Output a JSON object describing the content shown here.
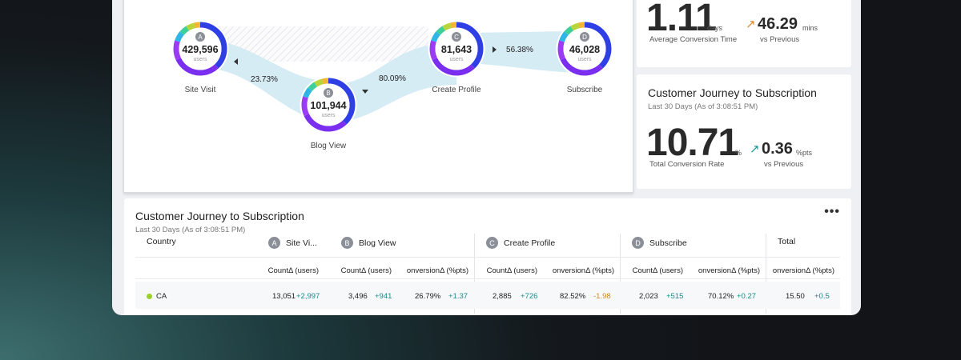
{
  "funnel": {
    "nodes": [
      {
        "letter": "A",
        "value": "429,596",
        "unit": "users",
        "label": "Site Visit"
      },
      {
        "letter": "B",
        "value": "101,944",
        "unit": "users",
        "label": "Blog View"
      },
      {
        "letter": "C",
        "value": "81,643",
        "unit": "users",
        "label": "Create Profile"
      },
      {
        "letter": "D",
        "value": "46,028",
        "unit": "users",
        "label": "Subscribe"
      }
    ],
    "rates": [
      "23.73%",
      "80.09%",
      "56.38%"
    ]
  },
  "stat_time": {
    "value": "1.11",
    "unit": "days",
    "label": "Average Conversion Time",
    "delta": "46.29",
    "delta_unit": "mins",
    "delta_label": "vs Previous",
    "delta_color": "#e08a2c"
  },
  "stat_rate": {
    "title": "Customer Journey to Subscription",
    "subtitle": "Last 30 Days (As of 3:08:51 PM)",
    "value": "10.71",
    "unit": "%",
    "label": "Total Conversion Rate",
    "delta": "0.36",
    "delta_unit": "%pts",
    "delta_label": "vs Previous",
    "delta_color": "#1a9a9a"
  },
  "table": {
    "title": "Customer Journey to Subscription",
    "subtitle": "Last 30 Days (As of 3:08:51 PM)",
    "more": "•••",
    "headers": {
      "country": "Country",
      "a_letter": "A",
      "a": "Site Vi...",
      "b_letter": "B",
      "b": "Blog View",
      "c_letter": "C",
      "c": "Create Profile",
      "d_letter": "D",
      "d": "Subscribe",
      "total": "Total"
    },
    "subheaders": {
      "a_count": "CountΔ (users)",
      "b_count": "CountΔ (users)",
      "b_conv": "onversionΔ (%pts)",
      "c_count": "CountΔ (users)",
      "c_conv": "onversionΔ (%pts)",
      "d_count": "CountΔ (users)",
      "d_conv": "onversionΔ (%pts)",
      "t_conv": "onversionΔ (%pts)"
    },
    "rows": [
      {
        "country": "CA",
        "a_count": "13,051",
        "a_delta": "+2,997",
        "b_count": "3,496",
        "b_delta": "+941",
        "b_conv": "26.79%",
        "b_conv_delta": "+1.37",
        "c_count": "2,885",
        "c_delta": "+726",
        "c_conv": "82.52%",
        "c_conv_delta": "-1.98",
        "d_count": "2,023",
        "d_delta": "+515",
        "d_conv": "70.12%",
        "d_conv_delta": "+0.27",
        "t_conv": "15.50",
        "t_conv_delta": "+0.5"
      }
    ]
  }
}
